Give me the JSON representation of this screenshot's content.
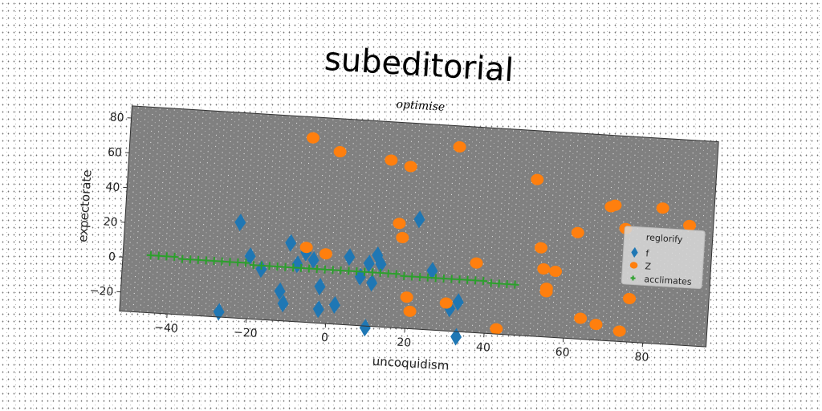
{
  "chart_data": {
    "type": "scatter",
    "title": "subeditorial",
    "subtitle": "optimise",
    "xlabel": "uncoquidism",
    "ylabel": "expectorate",
    "xlim": [
      -52,
      96
    ],
    "ylim": [
      -31,
      87
    ],
    "xticks": [
      -40,
      -20,
      0,
      20,
      40,
      60,
      80
    ],
    "yticks": [
      -20,
      0,
      20,
      40,
      60,
      80
    ],
    "grid": false,
    "legend": {
      "title": "reglorify",
      "placement": "center-right"
    },
    "colors": {
      "f": "#1f77b4",
      "Z": "#ff7f0e",
      "acclimates": "#2ca02c",
      "plot_bg": "#808080"
    },
    "series": [
      {
        "name": "f",
        "marker": "diamond",
        "points": [
          [
            -23,
            24
          ],
          [
            -20,
            5
          ],
          [
            -17,
            -2
          ],
          [
            -12,
            -14
          ],
          [
            -11,
            -21
          ],
          [
            -10,
            14
          ],
          [
            -8,
            2
          ],
          [
            -6,
            9
          ],
          [
            -4,
            5
          ],
          [
            -2,
            -10
          ],
          [
            -2,
            -23
          ],
          [
            2,
            -20
          ],
          [
            5,
            8
          ],
          [
            8,
            -3
          ],
          [
            10,
            -32
          ],
          [
            10,
            5
          ],
          [
            11,
            -6
          ],
          [
            12,
            10
          ],
          [
            13,
            5
          ],
          [
            22,
            32
          ],
          [
            26,
            3
          ],
          [
            31,
            -18
          ],
          [
            33,
            -14
          ],
          [
            33,
            -34
          ],
          [
            -27,
            -28
          ]
        ]
      },
      {
        "name": "Z",
        "marker": "circle",
        "points": [
          [
            -6,
            75
          ],
          [
            1,
            68
          ],
          [
            14,
            65
          ],
          [
            19,
            62
          ],
          [
            31,
            75
          ],
          [
            51,
            59
          ],
          [
            53,
            20
          ],
          [
            54,
            8
          ],
          [
            55,
            -5
          ],
          [
            55,
            -3
          ],
          [
            57,
            7
          ],
          [
            62,
            30
          ],
          [
            64,
            -19
          ],
          [
            68,
            -22
          ],
          [
            70,
            46
          ],
          [
            71,
            47
          ],
          [
            74,
            34
          ],
          [
            74,
            -25
          ],
          [
            76,
            -6
          ],
          [
            83,
            47
          ],
          [
            90,
            38
          ],
          [
            -6,
            12
          ],
          [
            -1,
            9
          ],
          [
            17,
            29
          ],
          [
            18,
            21
          ],
          [
            20,
            -13
          ],
          [
            21,
            -21
          ],
          [
            30,
            -15
          ],
          [
            37,
            9
          ],
          [
            43,
            -28
          ]
        ]
      },
      {
        "name": "acclimates",
        "marker": "plus",
        "points": [
          [
            -45,
            2
          ],
          [
            -43,
            2
          ],
          [
            -41,
            2
          ],
          [
            -39,
            2
          ],
          [
            -37,
            1
          ],
          [
            -35,
            1
          ],
          [
            -33,
            1
          ],
          [
            -31,
            1
          ],
          [
            -29,
            1
          ],
          [
            -27,
            1
          ],
          [
            -25,
            1
          ],
          [
            -23,
            1
          ],
          [
            -21,
            1
          ],
          [
            -19,
            0
          ],
          [
            -17,
            0
          ],
          [
            -15,
            0
          ],
          [
            -13,
            0
          ],
          [
            -11,
            0
          ],
          [
            -9,
            0
          ],
          [
            -7,
            0
          ],
          [
            -5,
            0
          ],
          [
            -3,
            0
          ],
          [
            -1,
            0
          ],
          [
            1,
            0
          ],
          [
            3,
            0
          ],
          [
            5,
            0
          ],
          [
            7,
            0
          ],
          [
            9,
            0
          ],
          [
            11,
            0
          ],
          [
            13,
            0
          ],
          [
            15,
            0
          ],
          [
            17,
            0
          ],
          [
            19,
            -1
          ],
          [
            21,
            -1
          ],
          [
            23,
            -1
          ],
          [
            25,
            -1
          ],
          [
            27,
            -1
          ],
          [
            29,
            -1
          ],
          [
            31,
            -1
          ],
          [
            33,
            -1
          ],
          [
            35,
            -1
          ],
          [
            37,
            -1
          ],
          [
            39,
            -1
          ],
          [
            41,
            -2
          ],
          [
            43,
            -2
          ],
          [
            45,
            -2
          ],
          [
            47,
            -2
          ]
        ]
      }
    ]
  }
}
